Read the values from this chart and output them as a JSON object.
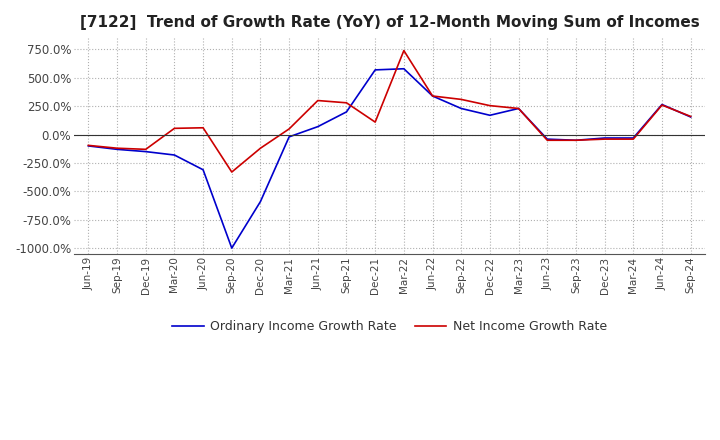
{
  "title": "[7122]  Trend of Growth Rate (YoY) of 12-Month Moving Sum of Incomes",
  "title_fontsize": 11,
  "ylim": [
    -1050,
    850
  ],
  "yticks": [
    -1000,
    -750,
    -500,
    -250,
    0,
    250,
    500,
    750
  ],
  "ytick_labels": [
    "-1000.0%",
    "-750.0%",
    "-500.0%",
    "-250.0%",
    "0.0%",
    "250.0%",
    "500.0%",
    "750.0%"
  ],
  "background_color": "#ffffff",
  "grid_color": "#b0b0b0",
  "ordinary_color": "#0000cc",
  "net_color": "#cc0000",
  "legend_labels": [
    "Ordinary Income Growth Rate",
    "Net Income Growth Rate"
  ],
  "x_labels": [
    "Jun-19",
    "Sep-19",
    "Dec-19",
    "Mar-20",
    "Jun-20",
    "Sep-20",
    "Dec-20",
    "Mar-21",
    "Jun-21",
    "Sep-21",
    "Dec-21",
    "Mar-22",
    "Jun-22",
    "Sep-22",
    "Dec-22",
    "Mar-23",
    "Jun-23",
    "Sep-23",
    "Dec-23",
    "Mar-24",
    "Jun-24",
    "Sep-24"
  ],
  "ordinary_income": [
    -100,
    -130,
    -150,
    -180,
    -310,
    -1000,
    -590,
    -20,
    70,
    200,
    570,
    580,
    340,
    230,
    170,
    230,
    -40,
    -50,
    -30,
    -30,
    265,
    155
  ],
  "net_income": [
    -95,
    -120,
    -130,
    55,
    60,
    -330,
    -120,
    50,
    300,
    280,
    110,
    740,
    340,
    310,
    255,
    230,
    -50,
    -50,
    -40,
    -40,
    260,
    160
  ]
}
